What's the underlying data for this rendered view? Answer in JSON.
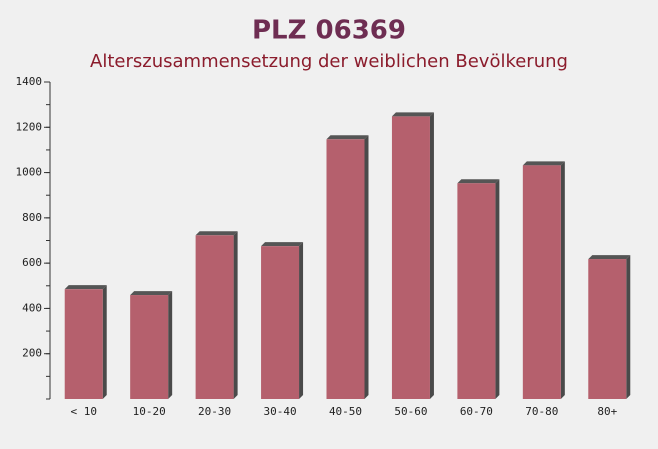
{
  "chart_data": {
    "type": "bar",
    "title": "PLZ 06369",
    "subtitle": "Alterszusammensetzung der weiblichen Bevölkerung",
    "categories": [
      "< 10",
      "10-20",
      "20-30",
      "30-40",
      "40-50",
      "50-60",
      "60-70",
      "70-80",
      "80+"
    ],
    "values": [
      485,
      459,
      723,
      675,
      1147,
      1248,
      953,
      1032,
      618
    ],
    "color": "#b5606d",
    "ylim": [
      0,
      1400
    ],
    "yticks": [
      200,
      400,
      600,
      800,
      1000,
      1200,
      1400
    ]
  }
}
